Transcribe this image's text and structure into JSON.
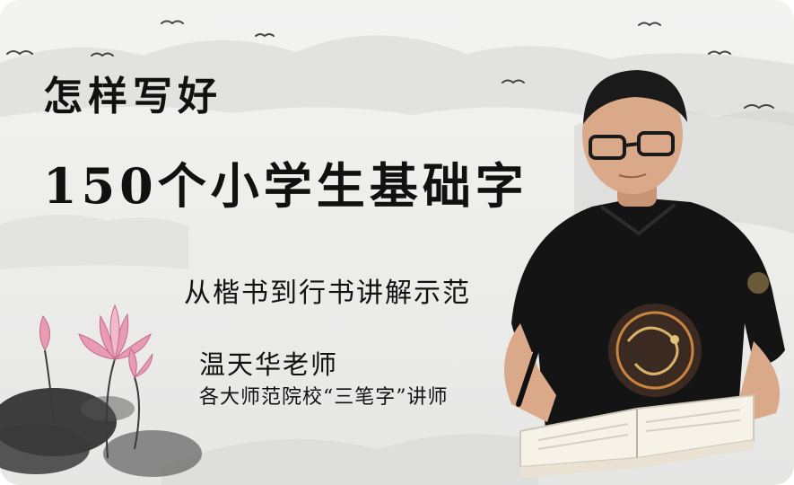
{
  "title": {
    "line1": "怎样写好",
    "line2": "150个小学生基础字"
  },
  "subtitle": "从楷书到行书讲解示范",
  "teacher": {
    "name": "温天华老师",
    "description": "各大师范院校“三笔字”讲师"
  },
  "colors": {
    "text": "#111111",
    "background": "#ededec",
    "mountain": "#d2d2d0",
    "lotus_pink": "#e79bb4",
    "leaf_dark": "#2a2a2a",
    "shirt": "#141414",
    "skin": "#d9a98a"
  },
  "decorations": [
    "ink-mountains",
    "flying-birds",
    "lotus-flowers",
    "lotus-leaves"
  ]
}
